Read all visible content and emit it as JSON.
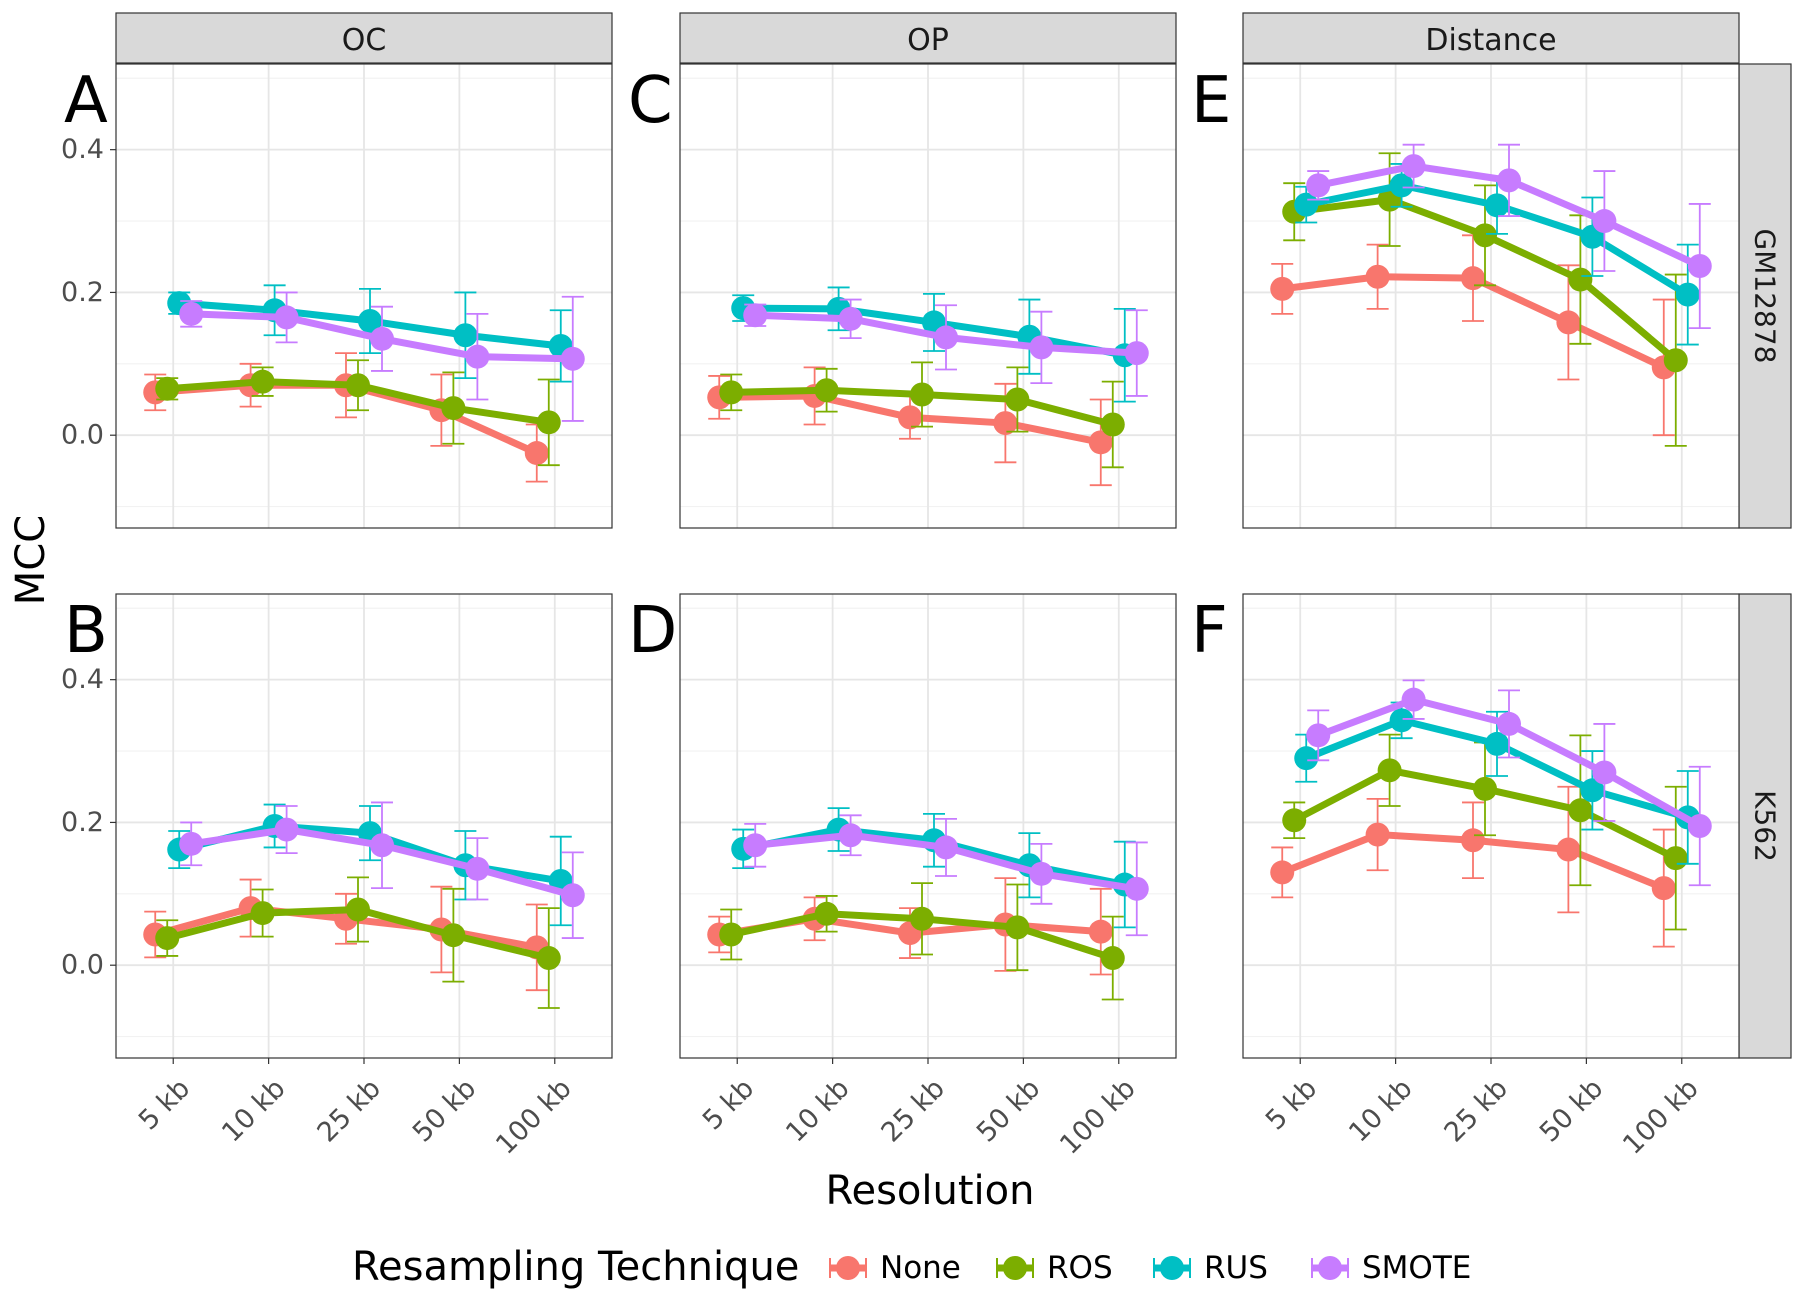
{
  "figure": {
    "ylabel": "MCC",
    "xlabel": "Resolution",
    "legend_title": "Resampling Technique",
    "legend_position": "bottom",
    "column_strips": [
      "OC",
      "OP",
      "Distance"
    ],
    "row_strips": [
      "GM12878",
      "K562"
    ],
    "panel_letters": [
      "A",
      "C",
      "E",
      "B",
      "D",
      "F"
    ],
    "y_ticks": [
      "0.0",
      "0.2",
      "0.4"
    ],
    "x_ticks": [
      "5 kb",
      "10 kb",
      "25 kb",
      "50 kb",
      "100 kb"
    ],
    "legend_items": [
      "None",
      "ROS",
      "RUS",
      "SMOTE"
    ],
    "colors": {
      "None": "#F8766D",
      "ROS": "#7CAE00",
      "RUS": "#00BFC4",
      "SMOTE": "#C77CFF"
    }
  },
  "chart_data": [
    {
      "type": "line",
      "panel": "A",
      "column": "OC",
      "row": "GM12878",
      "categories": [
        "5 kb",
        "10 kb",
        "25 kb",
        "50 kb",
        "100 kb"
      ],
      "ylim": [
        -0.13,
        0.52
      ],
      "grid": true,
      "error_bars": true,
      "series": [
        {
          "name": "None",
          "values": [
            0.06,
            0.07,
            0.07,
            0.035,
            -0.025
          ],
          "err": [
            0.025,
            0.03,
            0.045,
            0.05,
            0.04
          ]
        },
        {
          "name": "ROS",
          "values": [
            0.065,
            0.075,
            0.07,
            0.038,
            0.018
          ],
          "err": [
            0.015,
            0.02,
            0.035,
            0.05,
            0.06
          ]
        },
        {
          "name": "RUS",
          "values": [
            0.185,
            0.175,
            0.16,
            0.14,
            0.125
          ],
          "err": [
            0.015,
            0.035,
            0.045,
            0.06,
            0.05
          ]
        },
        {
          "name": "SMOTE",
          "values": [
            0.17,
            0.165,
            0.135,
            0.11,
            0.107
          ],
          "err": [
            0.018,
            0.035,
            0.045,
            0.06,
            0.087
          ]
        }
      ]
    },
    {
      "type": "line",
      "panel": "C",
      "column": "OP",
      "row": "GM12878",
      "categories": [
        "5 kb",
        "10 kb",
        "25 kb",
        "50 kb",
        "100 kb"
      ],
      "ylim": [
        -0.13,
        0.52
      ],
      "grid": true,
      "error_bars": true,
      "series": [
        {
          "name": "None",
          "values": [
            0.053,
            0.055,
            0.025,
            0.017,
            -0.01
          ],
          "err": [
            0.03,
            0.04,
            0.03,
            0.055,
            0.06
          ]
        },
        {
          "name": "ROS",
          "values": [
            0.06,
            0.063,
            0.057,
            0.05,
            0.015
          ],
          "err": [
            0.025,
            0.03,
            0.045,
            0.045,
            0.06
          ]
        },
        {
          "name": "RUS",
          "values": [
            0.178,
            0.177,
            0.158,
            0.138,
            0.112
          ],
          "err": [
            0.018,
            0.03,
            0.04,
            0.052,
            0.065
          ]
        },
        {
          "name": "SMOTE",
          "values": [
            0.168,
            0.163,
            0.137,
            0.123,
            0.115
          ],
          "err": [
            0.015,
            0.027,
            0.045,
            0.05,
            0.06
          ]
        }
      ]
    },
    {
      "type": "line",
      "panel": "E",
      "column": "Distance",
      "row": "GM12878",
      "categories": [
        "5 kb",
        "10 kb",
        "25 kb",
        "50 kb",
        "100 kb"
      ],
      "ylim": [
        -0.13,
        0.52
      ],
      "grid": true,
      "error_bars": true,
      "series": [
        {
          "name": "None",
          "values": [
            0.205,
            0.222,
            0.22,
            0.158,
            0.095
          ],
          "err": [
            0.035,
            0.045,
            0.06,
            0.08,
            0.095
          ]
        },
        {
          "name": "ROS",
          "values": [
            0.313,
            0.33,
            0.28,
            0.218,
            0.105
          ],
          "err": [
            0.04,
            0.065,
            0.07,
            0.09,
            0.12
          ]
        },
        {
          "name": "RUS",
          "values": [
            0.323,
            0.35,
            0.322,
            0.278,
            0.197
          ],
          "err": [
            0.025,
            0.03,
            0.04,
            0.055,
            0.07
          ]
        },
        {
          "name": "SMOTE",
          "values": [
            0.35,
            0.377,
            0.357,
            0.3,
            0.237
          ],
          "err": [
            0.02,
            0.03,
            0.05,
            0.07,
            0.087
          ]
        }
      ]
    },
    {
      "type": "line",
      "panel": "B",
      "column": "OC",
      "row": "K562",
      "categories": [
        "5 kb",
        "10 kb",
        "25 kb",
        "50 kb",
        "100 kb"
      ],
      "ylim": [
        -0.13,
        0.52
      ],
      "grid": true,
      "error_bars": true,
      "series": [
        {
          "name": "None",
          "values": [
            0.043,
            0.08,
            0.065,
            0.05,
            0.025
          ],
          "err": [
            0.032,
            0.04,
            0.035,
            0.06,
            0.06
          ]
        },
        {
          "name": "ROS",
          "values": [
            0.038,
            0.073,
            0.078,
            0.042,
            0.01
          ],
          "err": [
            0.025,
            0.033,
            0.045,
            0.065,
            0.07
          ]
        },
        {
          "name": "RUS",
          "values": [
            0.162,
            0.195,
            0.185,
            0.14,
            0.118
          ],
          "err": [
            0.026,
            0.03,
            0.038,
            0.048,
            0.062
          ]
        },
        {
          "name": "SMOTE",
          "values": [
            0.17,
            0.19,
            0.168,
            0.135,
            0.098
          ],
          "err": [
            0.03,
            0.033,
            0.06,
            0.043,
            0.06
          ]
        }
      ]
    },
    {
      "type": "line",
      "panel": "D",
      "column": "OP",
      "row": "K562",
      "categories": [
        "5 kb",
        "10 kb",
        "25 kb",
        "50 kb",
        "100 kb"
      ],
      "ylim": [
        -0.13,
        0.52
      ],
      "grid": true,
      "error_bars": true,
      "series": [
        {
          "name": "None",
          "values": [
            0.043,
            0.065,
            0.045,
            0.057,
            0.047
          ],
          "err": [
            0.025,
            0.03,
            0.035,
            0.065,
            0.06
          ]
        },
        {
          "name": "ROS",
          "values": [
            0.043,
            0.072,
            0.065,
            0.053,
            0.01
          ],
          "err": [
            0.035,
            0.025,
            0.05,
            0.06,
            0.058
          ]
        },
        {
          "name": "RUS",
          "values": [
            0.163,
            0.19,
            0.175,
            0.14,
            0.113
          ],
          "err": [
            0.027,
            0.03,
            0.037,
            0.045,
            0.06
          ]
        },
        {
          "name": "SMOTE",
          "values": [
            0.168,
            0.182,
            0.165,
            0.128,
            0.107
          ],
          "err": [
            0.03,
            0.028,
            0.04,
            0.042,
            0.065
          ]
        }
      ]
    },
    {
      "type": "line",
      "panel": "F",
      "column": "Distance",
      "row": "K562",
      "categories": [
        "5 kb",
        "10 kb",
        "25 kb",
        "50 kb",
        "100 kb"
      ],
      "ylim": [
        -0.13,
        0.52
      ],
      "grid": true,
      "error_bars": true,
      "series": [
        {
          "name": "None",
          "values": [
            0.13,
            0.183,
            0.175,
            0.162,
            0.108
          ],
          "err": [
            0.035,
            0.05,
            0.053,
            0.088,
            0.082
          ]
        },
        {
          "name": "ROS",
          "values": [
            0.203,
            0.273,
            0.247,
            0.217,
            0.15
          ],
          "err": [
            0.025,
            0.05,
            0.065,
            0.105,
            0.1
          ]
        },
        {
          "name": "RUS",
          "values": [
            0.29,
            0.343,
            0.31,
            0.245,
            0.207
          ],
          "err": [
            0.033,
            0.025,
            0.045,
            0.055,
            0.065
          ]
        },
        {
          "name": "SMOTE",
          "values": [
            0.322,
            0.372,
            0.338,
            0.27,
            0.195
          ],
          "err": [
            0.035,
            0.027,
            0.047,
            0.068,
            0.083
          ]
        }
      ]
    }
  ]
}
